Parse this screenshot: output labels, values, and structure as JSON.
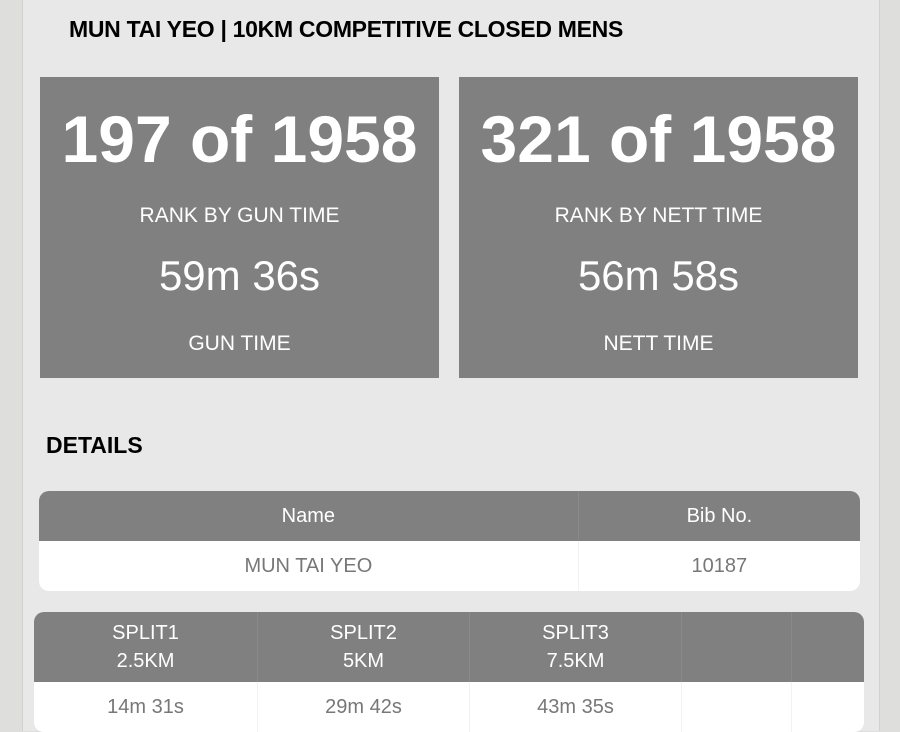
{
  "header": {
    "title": "MUN TAI YEO | 10KM COMPETITIVE CLOSED MENS"
  },
  "stats": [
    {
      "rank": "197 of 1958",
      "rank_label": "RANK BY GUN TIME",
      "time": "59m 36s",
      "time_label": "GUN TIME"
    },
    {
      "rank": "321 of 1958",
      "rank_label": "RANK BY NETT TIME",
      "time": "56m 58s",
      "time_label": "NETT TIME"
    }
  ],
  "details": {
    "heading": "DETAILS",
    "columns": [
      "Name",
      "Bib No."
    ],
    "row": [
      "MUN TAI YEO",
      "10187"
    ]
  },
  "splits": {
    "columns": [
      {
        "name": "SPLIT1",
        "distance": "2.5KM"
      },
      {
        "name": "SPLIT2",
        "distance": "5KM"
      },
      {
        "name": "SPLIT3",
        "distance": "7.5KM"
      }
    ],
    "row": [
      "14m 31s",
      "29m 42s",
      "43m 35s"
    ]
  },
  "colors": {
    "box": "#808080",
    "panel": "#e8e8e8",
    "background": "#dedfdc"
  }
}
